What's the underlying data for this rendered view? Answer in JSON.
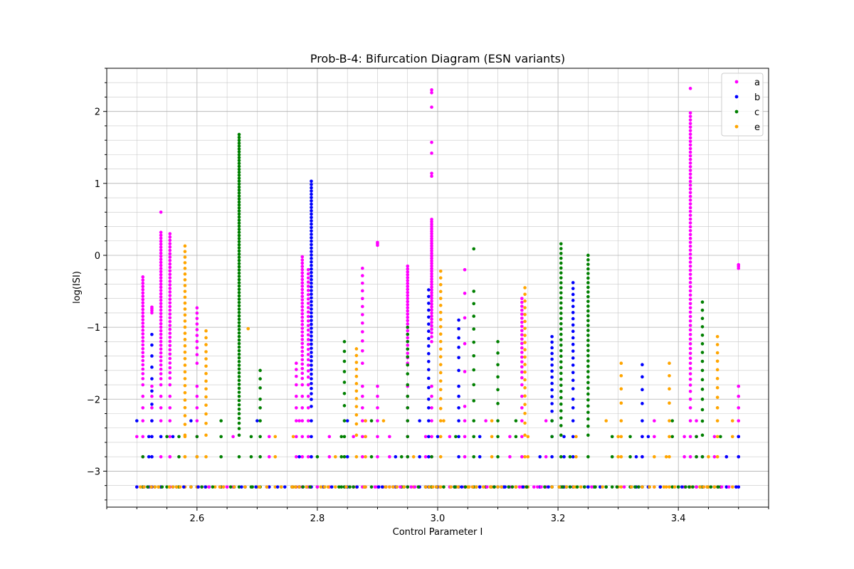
{
  "chart_data": {
    "type": "scatter",
    "title": "Prob-B-4: Bifurcation Diagram (ESN variants)",
    "xlabel": "Control Parameter I",
    "ylabel": "log(ISI)",
    "xlim": [
      2.45,
      3.55
    ],
    "ylim": [
      -3.5,
      2.6
    ],
    "xticks": [
      2.6,
      2.8,
      3.0,
      3.2,
      3.4
    ],
    "xtick_labels": [
      "2.6",
      "2.8",
      "3.0",
      "3.2",
      "3.4"
    ],
    "yticks": [
      -3,
      -2,
      -1,
      0,
      1,
      2
    ],
    "ytick_labels": [
      "−3",
      "−2",
      "−1",
      "0",
      "1",
      "2"
    ],
    "grid": true,
    "minor_grid": true,
    "legend_position": "upper right",
    "series": [
      {
        "name": "a",
        "color": "#ff00ff",
        "columns": [
          {
            "x": 2.51,
            "ymin": -1.8,
            "ymax": -0.3,
            "pts": 30
          },
          {
            "x": 2.525,
            "ymin": -0.8,
            "ymax": -0.72,
            "pts": 4
          },
          {
            "x": 2.54,
            "ymin": -1.8,
            "ymax": 0.32,
            "pts": 45
          },
          {
            "x": 2.555,
            "ymin": -1.8,
            "ymax": 0.3,
            "pts": 40
          },
          {
            "x": 2.6,
            "ymin": -1.5,
            "ymax": -0.73,
            "pts": 10
          },
          {
            "x": 2.765,
            "ymin": -1.8,
            "ymax": -1.5,
            "pts": 4
          },
          {
            "x": 2.775,
            "ymin": -1.8,
            "ymax": -0.02,
            "pts": 35
          },
          {
            "x": 2.785,
            "ymin": -1.8,
            "ymax": -0.2,
            "pts": 25
          },
          {
            "x": 2.875,
            "ymin": -1.5,
            "ymax": -0.18,
            "pts": 12
          },
          {
            "x": 2.9,
            "ymin": 0.14,
            "ymax": 0.18,
            "pts": 3
          },
          {
            "x": 2.95,
            "ymin": -1.5,
            "ymax": -0.15,
            "pts": 30
          },
          {
            "x": 2.99,
            "ymin": -1.2,
            "ymax": 0.5,
            "pts": 45
          },
          {
            "x": 3.045,
            "ymin": -2.1,
            "ymax": -0.2,
            "pts": 6
          },
          {
            "x": 3.14,
            "ymin": -1.8,
            "ymax": -0.6,
            "pts": 20
          },
          {
            "x": 3.42,
            "ymin": -2.0,
            "ymax": 1.98,
            "pts": 70
          },
          {
            "x": 3.5,
            "ymin": -0.18,
            "ymax": -0.13,
            "pts": 3
          }
        ],
        "isolated": [
          {
            "x": 2.54,
            "y": 0.6
          },
          {
            "x": 2.99,
            "y": 2.3
          },
          {
            "x": 2.99,
            "y": 2.26
          },
          {
            "x": 2.99,
            "y": 2.06
          },
          {
            "x": 2.99,
            "y": 1.57
          },
          {
            "x": 2.99,
            "y": 1.42
          },
          {
            "x": 2.99,
            "y": 1.14
          },
          {
            "x": 2.99,
            "y": 1.1
          },
          {
            "x": 3.42,
            "y": 2.32
          }
        ],
        "low_x": [
          2.5,
          2.54,
          2.555,
          2.65,
          2.66,
          2.72,
          2.77,
          2.79,
          2.82,
          2.86,
          2.88,
          2.92,
          2.95,
          2.98,
          3.02,
          3.08,
          3.12,
          3.18,
          3.34,
          3.36,
          3.41,
          3.43,
          3.46,
          3.48
        ]
      },
      {
        "name": "b",
        "color": "#0000ff",
        "columns": [
          {
            "x": 2.525,
            "ymin": -2.3,
            "ymax": -1.1,
            "pts": 8
          },
          {
            "x": 2.79,
            "ymin": -2.1,
            "ymax": 1.03,
            "pts": 60
          },
          {
            "x": 2.985,
            "ymin": -2.0,
            "ymax": -0.48,
            "pts": 15
          },
          {
            "x": 3.035,
            "ymin": -1.6,
            "ymax": -0.9,
            "pts": 6
          },
          {
            "x": 3.19,
            "ymin": -2.3,
            "ymax": -1.13,
            "pts": 14
          },
          {
            "x": 3.225,
            "ymin": -2.0,
            "ymax": -0.38,
            "pts": 18
          },
          {
            "x": 3.34,
            "ymin": -2.3,
            "ymax": -1.52,
            "pts": 5
          }
        ],
        "isolated": [],
        "low_x": [
          2.5,
          2.52,
          2.54,
          2.56,
          2.59,
          2.62,
          2.7,
          2.72,
          2.77,
          2.81,
          2.85,
          2.93,
          2.97,
          3.0,
          3.07,
          3.11,
          3.17,
          3.21,
          3.27,
          3.33,
          3.35,
          3.44,
          3.48,
          3.5
        ]
      },
      {
        "name": "c",
        "color": "#008000",
        "columns": [
          {
            "x": 2.67,
            "ymin": -2.5,
            "ymax": 1.68,
            "pts": 90
          },
          {
            "x": 2.705,
            "ymin": -2.0,
            "ymax": -1.6,
            "pts": 4
          },
          {
            "x": 2.845,
            "ymin": -2.3,
            "ymax": -1.2,
            "pts": 8
          },
          {
            "x": 2.95,
            "ymin": -1.8,
            "ymax": -1.0,
            "pts": 8
          },
          {
            "x": 3.06,
            "ymin": -2.3,
            "ymax": -0.5,
            "pts": 10
          },
          {
            "x": 3.1,
            "ymin": -2.3,
            "ymax": -1.2,
            "pts": 7
          },
          {
            "x": 3.205,
            "ymin": -2.5,
            "ymax": 0.16,
            "pts": 35
          },
          {
            "x": 3.25,
            "ymin": -2.5,
            "ymax": 0.0,
            "pts": 35
          },
          {
            "x": 3.44,
            "ymin": -2.5,
            "ymax": -0.65,
            "pts": 15
          }
        ],
        "isolated": [
          {
            "x": 3.06,
            "y": 0.09
          }
        ],
        "low_x": [
          2.51,
          2.53,
          2.55,
          2.57,
          2.6,
          2.64,
          2.69,
          2.74,
          2.8,
          2.84,
          2.89,
          2.94,
          2.99,
          3.03,
          3.08,
          3.13,
          3.19,
          3.22,
          3.26,
          3.29,
          3.32,
          3.37,
          3.39,
          3.43,
          3.47
        ]
      },
      {
        "name": "e",
        "color": "#ffa500",
        "columns": [
          {
            "x": 2.58,
            "ymin": -2.5,
            "ymax": 0.13,
            "pts": 30
          },
          {
            "x": 2.615,
            "ymin": -2.5,
            "ymax": -1.05,
            "pts": 14
          },
          {
            "x": 2.865,
            "ymin": -2.5,
            "ymax": -1.3,
            "pts": 12
          },
          {
            "x": 3.005,
            "ymin": -2.3,
            "ymax": -0.22,
            "pts": 20
          },
          {
            "x": 3.145,
            "ymin": -2.5,
            "ymax": -0.45,
            "pts": 20
          },
          {
            "x": 3.305,
            "ymin": -2.3,
            "ymax": -1.5,
            "pts": 5
          },
          {
            "x": 3.385,
            "ymin": -2.3,
            "ymax": -1.5,
            "pts": 5
          },
          {
            "x": 3.465,
            "ymin": -2.3,
            "ymax": -1.13,
            "pts": 10
          }
        ],
        "isolated": [
          {
            "x": 2.685,
            "y": -1.02
          }
        ],
        "low_x": [
          2.58,
          2.6,
          2.63,
          2.68,
          2.7,
          2.73,
          2.76,
          2.83,
          2.86,
          2.88,
          2.91,
          2.96,
          3.01,
          3.05,
          3.09,
          3.15,
          3.23,
          3.28,
          3.3,
          3.36,
          3.38,
          3.42,
          3.45,
          3.49
        ]
      }
    ],
    "baseline_y": -3.22,
    "shared_levels": [
      -2.8,
      -2.52,
      -2.3,
      -2.12,
      -1.96,
      -1.82
    ]
  }
}
